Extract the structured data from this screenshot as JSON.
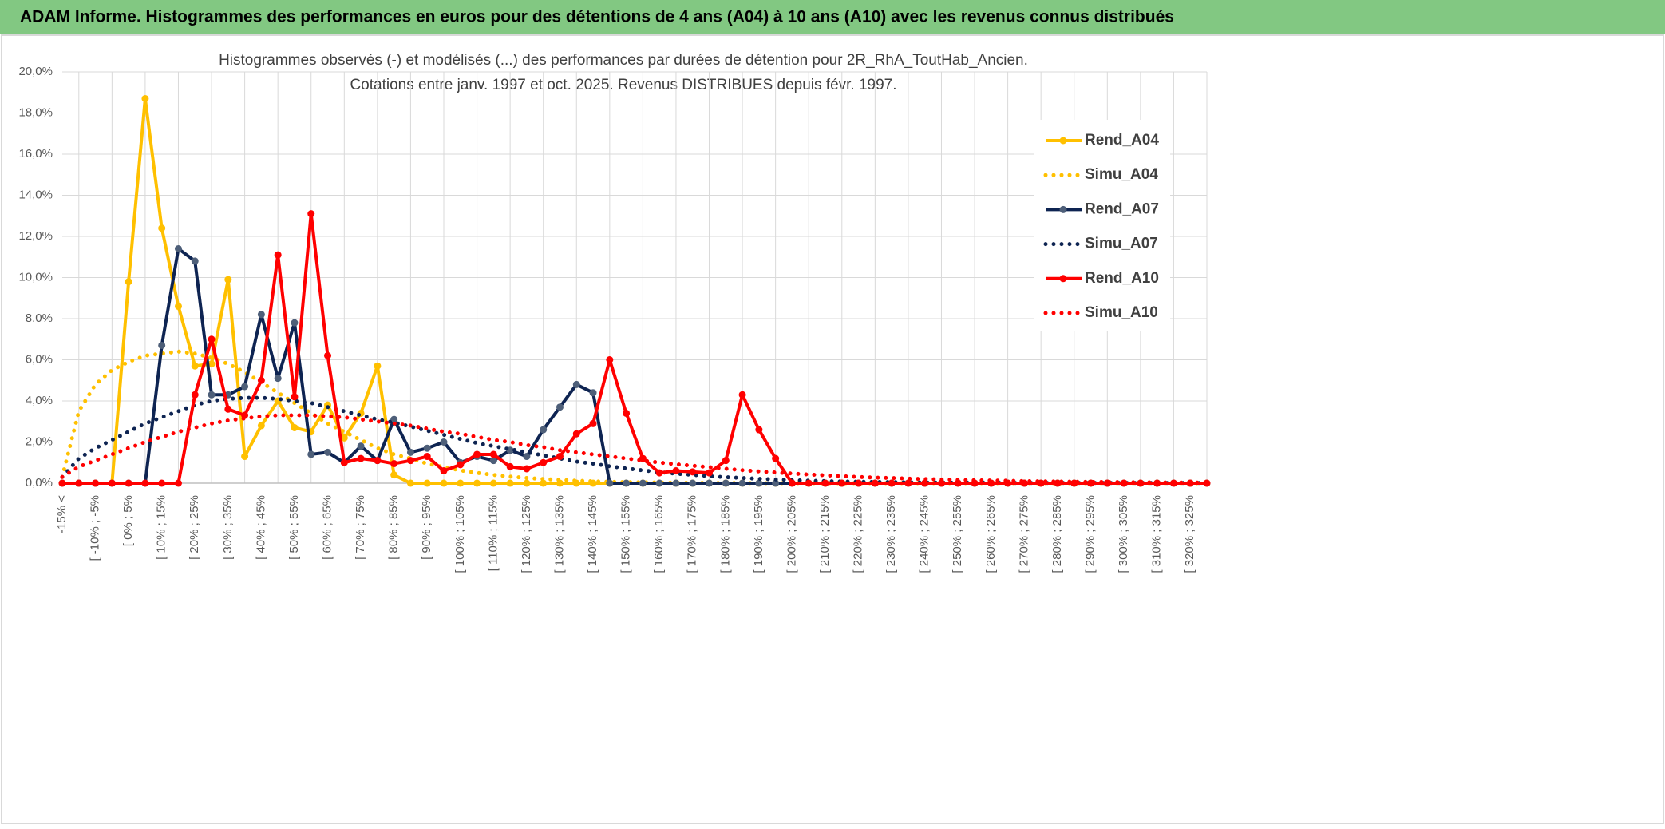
{
  "header": {
    "title": "ADAM Informe. Histogrammes des performances en euros pour des détentions de 4 ans (A04) à 10 ans (A10) avec les revenus connus distribués"
  },
  "chart_data": {
    "type": "line",
    "title": "Histogrammes observés (-) et modélisés (...) des performances par durées de détention pour 2R_RhA_ToutHab_Ancien.",
    "subtitle": "Cotations entre janv. 1997 et oct. 2025. Revenus DISTRIBUES depuis févr. 1997.",
    "categories": [
      "-15% <",
      null,
      "[ -10% ; -5%",
      null,
      "[ 0% ; 5%",
      null,
      "[ 10% ; 15%",
      null,
      "[ 20% ; 25%",
      null,
      "[ 30% ; 35%",
      null,
      "[ 40% ; 45%",
      null,
      "[ 50% ; 55%",
      null,
      "[ 60% ; 65%",
      null,
      "[ 70% ; 75%",
      null,
      "[ 80% ; 85%",
      null,
      "[ 90% ; 95%",
      null,
      "[ 100% ; 105%",
      null,
      "[ 110% ; 115%",
      null,
      "[ 120% ; 125%",
      null,
      "[ 130% ; 135%",
      null,
      "[ 140% ; 145%",
      null,
      "[ 150% ; 155%",
      null,
      "[ 160% ; 165%",
      null,
      "[ 170% ; 175%",
      null,
      "[ 180% ; 185%",
      null,
      "[ 190% ; 195%",
      null,
      "[ 200% ; 205%",
      null,
      "[ 210% ; 215%",
      null,
      "[ 220% ; 225%",
      null,
      "[ 230% ; 235%",
      null,
      "[ 240% ; 245%",
      null,
      "[ 250% ; 255%",
      null,
      "[ 260% ; 265%",
      null,
      "[ 270% ; 275%",
      null,
      "[ 280% ; 285%",
      null,
      "[ 290% ; 295%",
      null,
      "[ 300% ; 305%",
      null,
      "[ 310% ; 315%",
      null,
      "[ 320% ; 325%",
      null
    ],
    "series": [
      {
        "name": "Rend_A04",
        "color": "#ffc000",
        "marker": true,
        "dotted": false,
        "values": [
          0,
          0,
          0,
          0,
          9.8,
          18.7,
          12.4,
          8.6,
          5.7,
          5.8,
          9.9,
          1.3,
          2.8,
          4.0,
          2.7,
          2.5,
          3.8,
          2.2,
          3.4,
          5.7,
          0.4,
          0,
          0,
          0,
          0,
          0,
          0,
          0,
          0,
          0,
          0,
          0,
          0,
          0,
          0,
          0,
          0,
          0,
          0,
          0,
          0,
          0,
          0,
          0,
          0,
          0,
          0,
          0,
          0,
          0,
          0,
          0,
          0,
          0,
          0,
          0,
          0,
          0,
          0,
          0,
          0,
          0,
          0,
          0,
          0,
          0,
          0,
          0,
          0,
          0
        ]
      },
      {
        "name": "Simu_A04",
        "color": "#ffc000",
        "marker": false,
        "dotted": true,
        "values": [
          0.3,
          3.5,
          4.8,
          5.5,
          5.9,
          6.2,
          6.3,
          6.4,
          6.3,
          6.1,
          5.8,
          5.4,
          4.9,
          4.4,
          3.9,
          3.4,
          2.9,
          2.5,
          2.1,
          1.7,
          1.4,
          1.2,
          0.95,
          0.78,
          0.62,
          0.5,
          0.4,
          0.32,
          0.25,
          0.2,
          0.16,
          0.12,
          0.09,
          0.07,
          0.05,
          0.04,
          0.03,
          0.02,
          0.02,
          0.01,
          0.01,
          0.01,
          0,
          0,
          0,
          0,
          0,
          0,
          0,
          0,
          0,
          0,
          0,
          0,
          0,
          0,
          0,
          0,
          0,
          0,
          0,
          0,
          0,
          0,
          0,
          0,
          0,
          0,
          0,
          0
        ]
      },
      {
        "name": "Rend_A07",
        "color": "#0e2452",
        "marker": true,
        "dotted": false,
        "values": [
          0,
          0,
          0,
          0,
          0,
          0,
          6.7,
          11.4,
          10.8,
          4.3,
          4.3,
          4.7,
          8.2,
          5.1,
          7.8,
          1.4,
          1.5,
          1.0,
          1.8,
          1.1,
          3.1,
          1.5,
          1.7,
          2.0,
          1.0,
          1.3,
          1.1,
          1.6,
          1.3,
          2.6,
          3.7,
          4.8,
          4.4,
          0,
          0,
          0,
          0,
          0,
          0,
          0,
          0,
          0,
          0,
          0,
          0,
          0,
          0,
          0,
          0,
          0,
          0,
          0,
          0,
          0,
          0,
          0,
          0,
          0,
          0,
          0,
          0,
          0,
          0,
          0,
          0,
          0,
          0,
          0,
          0,
          0
        ]
      },
      {
        "name": "Simu_A07",
        "color": "#0e2452",
        "marker": false,
        "dotted": true,
        "values": [
          0.3,
          1.2,
          1.7,
          2.1,
          2.5,
          2.9,
          3.2,
          3.5,
          3.8,
          4.0,
          4.1,
          4.15,
          4.15,
          4.1,
          4.0,
          3.9,
          3.7,
          3.5,
          3.3,
          3.1,
          2.95,
          2.75,
          2.55,
          2.35,
          2.15,
          1.95,
          1.8,
          1.65,
          1.5,
          1.35,
          1.2,
          1.05,
          0.95,
          0.82,
          0.72,
          0.62,
          0.54,
          0.46,
          0.4,
          0.34,
          0.29,
          0.25,
          0.21,
          0.18,
          0.15,
          0.12,
          0.1,
          0.08,
          0.07,
          0.06,
          0.05,
          0.04,
          0.03,
          0.03,
          0.02,
          0.02,
          0.02,
          0.01,
          0.01,
          0.01,
          0.01,
          0.01,
          0.01,
          0.01,
          0.01,
          0.01,
          0.01,
          0.01,
          0.01,
          0.01
        ]
      },
      {
        "name": "Rend_A10",
        "color": "#ff0000",
        "marker": true,
        "dotted": false,
        "values": [
          0,
          0,
          0,
          0,
          0,
          0,
          0,
          0,
          4.3,
          7.0,
          3.6,
          3.3,
          5.0,
          11.1,
          4.2,
          13.1,
          6.2,
          1.0,
          1.2,
          1.1,
          0.95,
          1.1,
          1.3,
          0.6,
          0.9,
          1.4,
          1.4,
          0.8,
          0.7,
          1.0,
          1.3,
          2.4,
          2.9,
          6.0,
          3.4,
          1.2,
          0.5,
          0.6,
          0.55,
          0.5,
          1.1,
          4.3,
          2.6,
          1.2,
          0,
          0,
          0,
          0,
          0,
          0,
          0,
          0,
          0,
          0,
          0,
          0,
          0,
          0,
          0,
          0,
          0,
          0,
          0,
          0,
          0,
          0,
          0,
          0,
          0,
          0
        ]
      },
      {
        "name": "Simu_A10",
        "color": "#ff0000",
        "marker": false,
        "dotted": true,
        "values": [
          0.3,
          0.8,
          1.1,
          1.4,
          1.7,
          2.0,
          2.25,
          2.5,
          2.7,
          2.9,
          3.05,
          3.15,
          3.25,
          3.3,
          3.3,
          3.3,
          3.25,
          3.2,
          3.1,
          3.0,
          2.9,
          2.8,
          2.65,
          2.5,
          2.4,
          2.25,
          2.1,
          2.0,
          1.85,
          1.75,
          1.6,
          1.5,
          1.4,
          1.3,
          1.2,
          1.1,
          1.0,
          0.92,
          0.85,
          0.78,
          0.7,
          0.63,
          0.57,
          0.52,
          0.47,
          0.42,
          0.38,
          0.34,
          0.3,
          0.27,
          0.25,
          0.22,
          0.2,
          0.18,
          0.16,
          0.14,
          0.13,
          0.12,
          0.1,
          0.09,
          0.08,
          0.07,
          0.06,
          0.06,
          0.05,
          0.04,
          0.04,
          0.03,
          0.03,
          0.03
        ]
      }
    ],
    "ylim": [
      0,
      20
    ],
    "yticks": [
      {
        "value": 0,
        "label": "0,0%"
      },
      {
        "value": 2,
        "label": "2,0%"
      },
      {
        "value": 4,
        "label": "4,0%"
      },
      {
        "value": 6,
        "label": "6,0%"
      },
      {
        "value": 8,
        "label": "8,0%"
      },
      {
        "value": 10,
        "label": "10,0%"
      },
      {
        "value": 12,
        "label": "12,0%"
      },
      {
        "value": 14,
        "label": "14,0%"
      },
      {
        "value": 16,
        "label": "16,0%"
      },
      {
        "value": 18,
        "label": "18,0%"
      },
      {
        "value": 20,
        "label": "20,0%"
      }
    ],
    "grid": true,
    "legend": "right"
  }
}
